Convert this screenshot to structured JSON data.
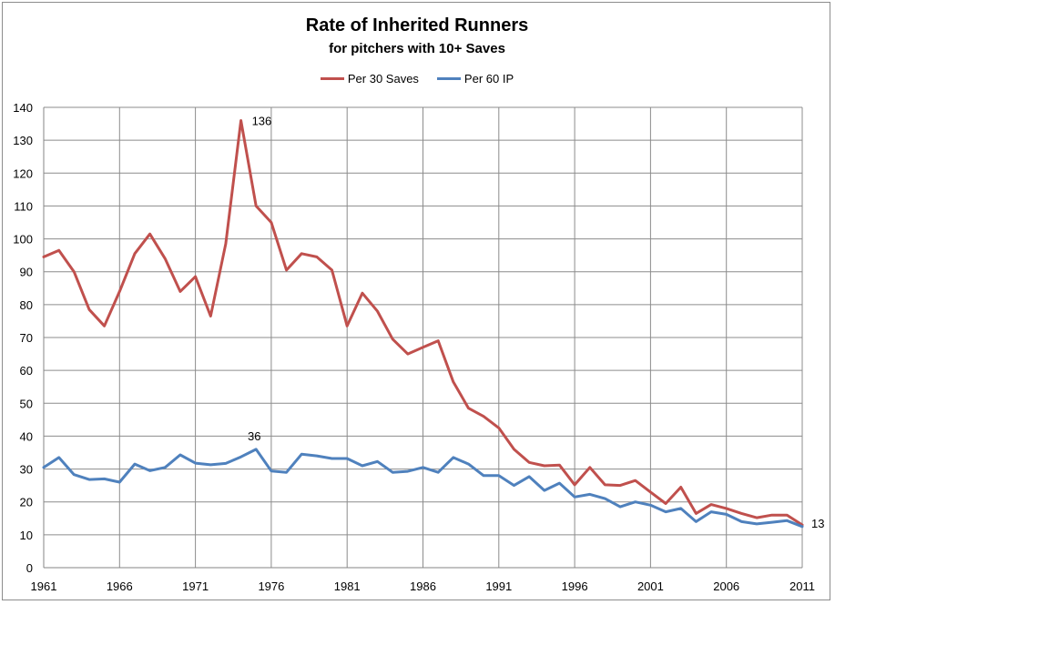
{
  "chart_data": {
    "type": "line",
    "title": "Rate of Inherited Runners",
    "subtitle": "for pitchers with 10+ Saves",
    "xlabel": "",
    "ylabel": "",
    "ylim": [
      0,
      140
    ],
    "xlim": [
      1961,
      2011
    ],
    "yticks": [
      0,
      10,
      20,
      30,
      40,
      50,
      60,
      70,
      80,
      90,
      100,
      110,
      120,
      130,
      140
    ],
    "xticks": [
      1961,
      1966,
      1971,
      1976,
      1981,
      1986,
      1991,
      1996,
      2001,
      2006,
      2011
    ],
    "grid": true,
    "legend_position": "top",
    "x": [
      1961,
      1962,
      1963,
      1964,
      1965,
      1966,
      1967,
      1968,
      1969,
      1970,
      1971,
      1972,
      1973,
      1974,
      1975,
      1976,
      1977,
      1978,
      1979,
      1980,
      1981,
      1982,
      1983,
      1984,
      1985,
      1986,
      1987,
      1988,
      1989,
      1990,
      1991,
      1992,
      1993,
      1994,
      1995,
      1996,
      1997,
      1998,
      1999,
      2000,
      2001,
      2002,
      2003,
      2004,
      2005,
      2006,
      2007,
      2008,
      2009,
      2010,
      2011
    ],
    "series": [
      {
        "name": "Per 30 Saves",
        "color": "#c0504d",
        "values": [
          94.5,
          96.5,
          90,
          78.5,
          73.5,
          84,
          95.5,
          101.5,
          94,
          84,
          88.5,
          76.5,
          98.5,
          136,
          110,
          105,
          90.5,
          95.5,
          94.5,
          90.5,
          73.5,
          83.5,
          78,
          69.5,
          65,
          67,
          69,
          56.5,
          48.5,
          46,
          42.5,
          36,
          32,
          31,
          31.2,
          25.2,
          30.5,
          25.2,
          25,
          26.5,
          23,
          19.5,
          24.5,
          16.5,
          19.2,
          18,
          16.5,
          15.2,
          16,
          16,
          13
        ]
      },
      {
        "name": "Per 60 IP",
        "color": "#4f81bd",
        "values": [
          30.5,
          33.5,
          28.3,
          26.8,
          27,
          26,
          31.5,
          29.5,
          30.5,
          34.3,
          31.8,
          31.3,
          31.7,
          33.7,
          36,
          29.4,
          29,
          34.5,
          34,
          33.2,
          33.2,
          31,
          32.3,
          29,
          29.3,
          30.5,
          29,
          33.5,
          31.5,
          28,
          28,
          25,
          27.7,
          23.5,
          25.7,
          21.5,
          22.3,
          21,
          18.5,
          20,
          19,
          17,
          18,
          14,
          17,
          16.2,
          14,
          13.3,
          13.8,
          14.3,
          12.5
        ]
      }
    ],
    "annotations": [
      {
        "x": 1974,
        "y": 136,
        "text": "136"
      },
      {
        "x": 1975,
        "y": 36,
        "text": "36"
      },
      {
        "x": 2011,
        "y": 13,
        "text": "13"
      }
    ]
  }
}
